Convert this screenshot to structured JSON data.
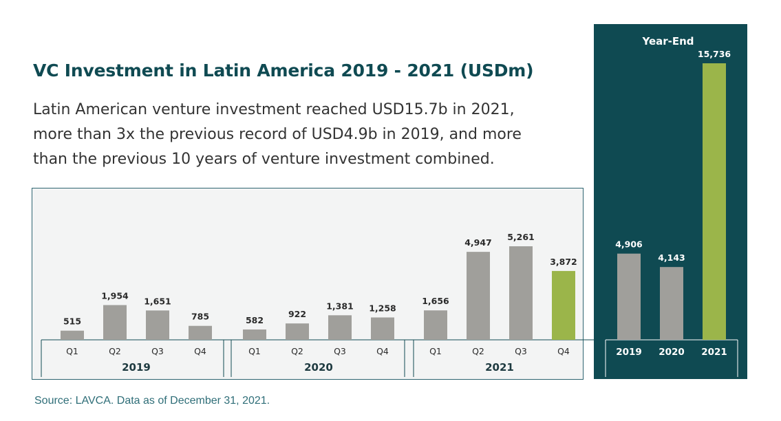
{
  "title": "VC Investment in Latin America 2019 - 2021 (USDm)",
  "subtitle": "Latin American venture investment reached USD15.7b in 2021, more than 3x the previous record of USD4.9b in 2019, and more than the previous 10 years of venture investment combined.",
  "source": "Source: LAVCA. Data as of December 31, 2021.",
  "colors": {
    "bar": "#a09f9b",
    "highlight": "#9bb54a",
    "dark": "#0f4a52",
    "panel_bg": "#f3f4f4"
  },
  "chart_data": [
    {
      "type": "bar",
      "title": "",
      "groups": [
        "2019",
        "2020",
        "2021"
      ],
      "categories": [
        "Q1",
        "Q2",
        "Q3",
        "Q4"
      ],
      "series": [
        {
          "group": "2019",
          "values": [
            515,
            1954,
            1651,
            785
          ],
          "labels": [
            "515",
            "1,954",
            "1,651",
            "785"
          ]
        },
        {
          "group": "2020",
          "values": [
            582,
            922,
            1381,
            1258
          ],
          "labels": [
            "582",
            "922",
            "1,381",
            "1,258"
          ]
        },
        {
          "group": "2021",
          "values": [
            1656,
            4947,
            5261,
            3872
          ],
          "labels": [
            "1,656",
            "4,947",
            "5,261",
            "3,872"
          ]
        }
      ],
      "highlight": {
        "group": "2021",
        "category": "Q4"
      },
      "ylim": [
        0,
        5261
      ]
    },
    {
      "type": "bar",
      "title": "Year-End",
      "categories": [
        "2019",
        "2020",
        "2021"
      ],
      "values": [
        4906,
        4143,
        15736
      ],
      "labels": [
        "4,906",
        "4,143",
        "15,736"
      ],
      "highlight": "2021",
      "ylim": [
        0,
        15736
      ]
    }
  ]
}
